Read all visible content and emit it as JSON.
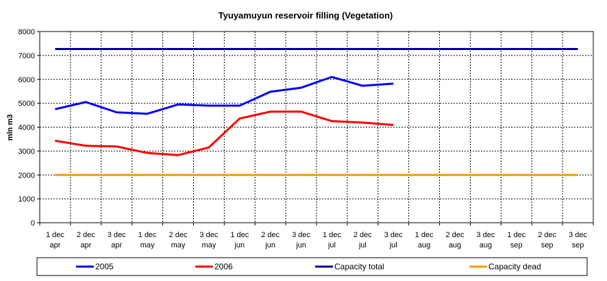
{
  "chart_data": {
    "type": "line",
    "title": "Tyuyamuyun reservoir filling (Vegetation)",
    "ylabel": "mln m3",
    "xlabel": "",
    "ylim": [
      0,
      8000
    ],
    "yticks": [
      0,
      1000,
      2000,
      3000,
      4000,
      5000,
      6000,
      7000,
      8000
    ],
    "grid": true,
    "legend_position": "bottom",
    "categories": [
      [
        "1 dec",
        "apr"
      ],
      [
        "2 dec",
        "apr"
      ],
      [
        "3 dec",
        "apr"
      ],
      [
        "1 dec",
        "may"
      ],
      [
        "2 dec",
        "may"
      ],
      [
        "3 dec",
        "may"
      ],
      [
        "1 dec",
        "jun"
      ],
      [
        "2 dec",
        "jun"
      ],
      [
        "3 dec",
        "jun"
      ],
      [
        "1 dec",
        "jul"
      ],
      [
        "2 dec",
        "jul"
      ],
      [
        "3 dec",
        "jul"
      ],
      [
        "1 dec",
        "aug"
      ],
      [
        "2 dec",
        "aug"
      ],
      [
        "3 dec",
        "aug"
      ],
      [
        "1 dec",
        "sep"
      ],
      [
        "2 dec",
        "sep"
      ],
      [
        "3 dec",
        "sep"
      ]
    ],
    "series": [
      {
        "name": "2005",
        "color": "#0000ff",
        "values": [
          4750,
          5050,
          4620,
          4560,
          4950,
          4900,
          4900,
          5480,
          5650,
          6100,
          5730,
          5820,
          null,
          null,
          null,
          null,
          null,
          null
        ]
      },
      {
        "name": "2006",
        "color": "#ff0000",
        "values": [
          3430,
          3220,
          3190,
          2920,
          2830,
          3150,
          4360,
          4650,
          4650,
          4250,
          4190,
          4090,
          null,
          null,
          null,
          null,
          null,
          null
        ]
      },
      {
        "name": "Capacity total",
        "color": "#000099",
        "values": [
          7270,
          7270,
          7270,
          7270,
          7270,
          7270,
          7270,
          7270,
          7270,
          7270,
          7270,
          7270,
          7270,
          7270,
          7270,
          7270,
          7270,
          7270
        ]
      },
      {
        "name": "Capacity dead",
        "color": "#ff9900",
        "values": [
          2000,
          2000,
          2000,
          2000,
          2000,
          2000,
          2000,
          2000,
          2000,
          2000,
          2000,
          2000,
          2000,
          2000,
          2000,
          2000,
          2000,
          2000
        ]
      }
    ]
  }
}
